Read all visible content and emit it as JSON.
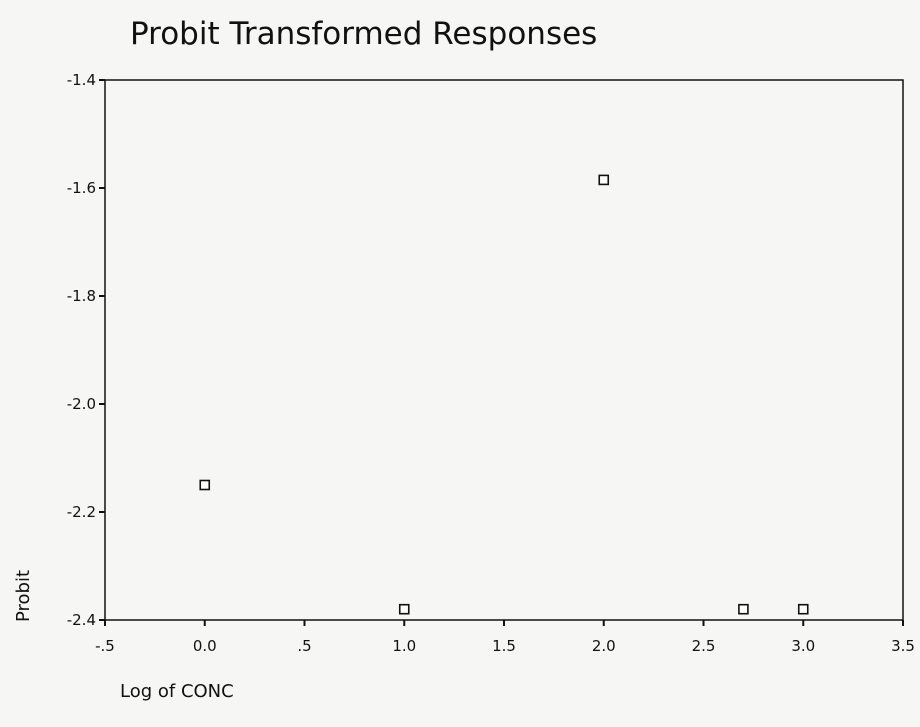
{
  "chart_data": {
    "type": "scatter",
    "title": "Probit Transformed Responses",
    "x_label": "Log of CONC",
    "y_label": "Probit",
    "x": [
      0,
      1,
      2,
      2.7,
      3
    ],
    "values": [
      -2.15,
      -2.38,
      -1.585,
      -2.38,
      -2.38
    ],
    "marker_color": "#111111",
    "xlim": [
      -0.5,
      3.5
    ],
    "xticks": [
      {
        "value": -0.5,
        "label": "-.5"
      },
      {
        "value": 0,
        "label": "0.0"
      },
      {
        "value": 0.5,
        "label": ".5"
      },
      {
        "value": 1,
        "label": "1.0"
      },
      1.5,
      {
        "value": 2,
        "label": "2.0"
      },
      2.5,
      {
        "value": 3,
        "label": "3.0"
      },
      3.5
    ],
    "ylim": [
      -2.4,
      -1.4
    ],
    "yticks": [
      -1.4,
      -1.6,
      -1.8,
      {
        "value": -2,
        "label": "-2.0"
      },
      -2.2,
      -2.4
    ],
    "grid": false
  }
}
